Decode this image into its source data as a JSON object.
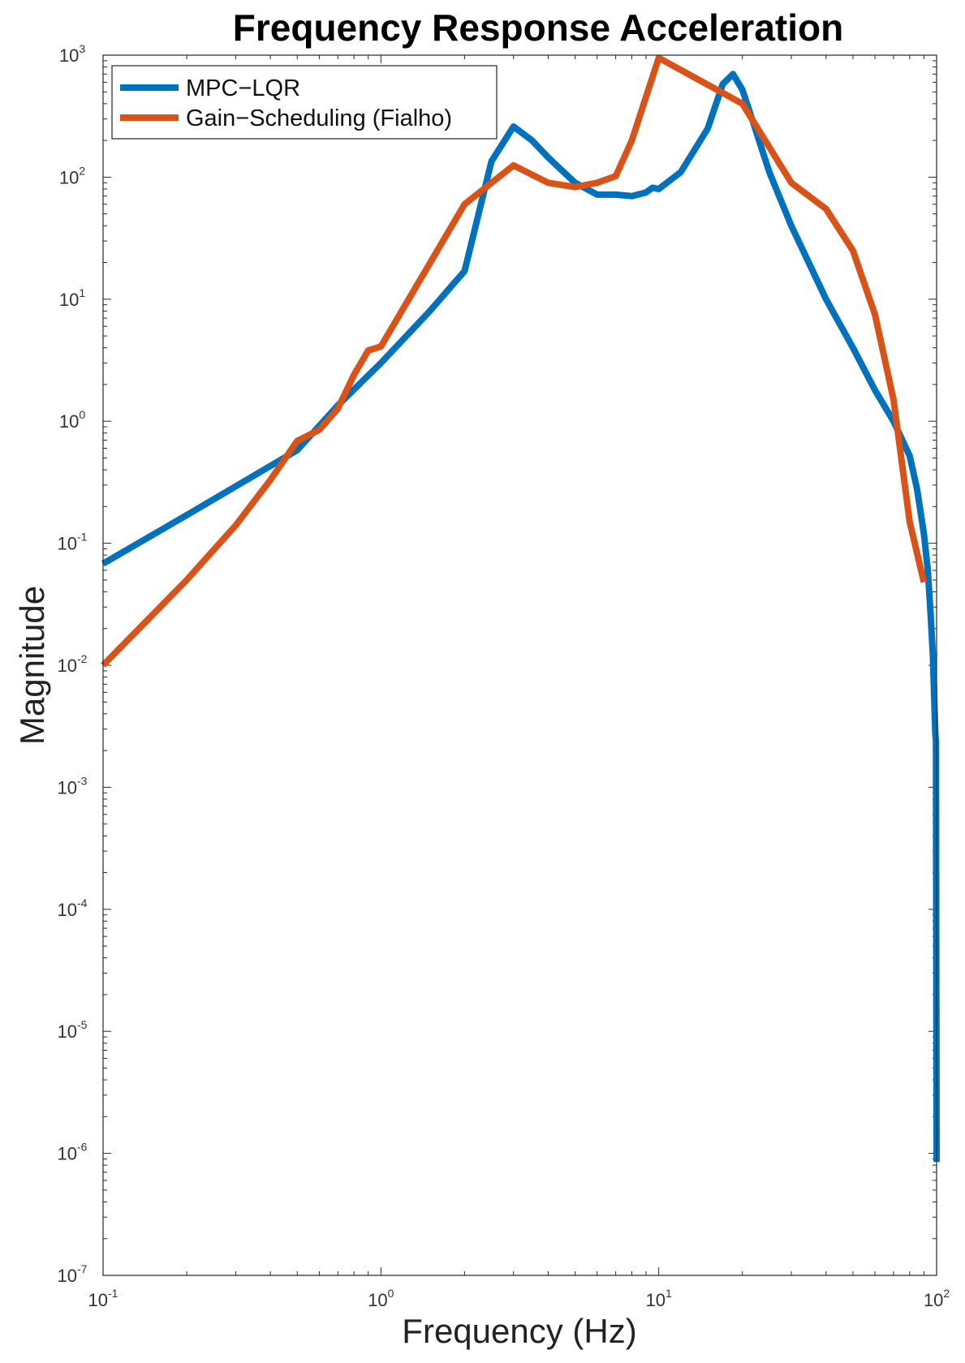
{
  "chart_data": {
    "type": "line",
    "title": "Frequency Response Acceleration",
    "xlabel": "Frequency (Hz)",
    "ylabel": "Magnitude",
    "xscale": "log",
    "yscale": "log",
    "xlim": [
      0.1,
      100
    ],
    "ylim": [
      1e-07,
      1000
    ],
    "x_ticks": [
      {
        "base": "10",
        "exp": "-1",
        "value": 0.1
      },
      {
        "base": "10",
        "exp": "0",
        "value": 1
      },
      {
        "base": "10",
        "exp": "1",
        "value": 10
      },
      {
        "base": "10",
        "exp": "2",
        "value": 100
      }
    ],
    "y_ticks": [
      {
        "base": "10",
        "exp": "-7",
        "value": 1e-07
      },
      {
        "base": "10",
        "exp": "-6",
        "value": 1e-06
      },
      {
        "base": "10",
        "exp": "-5",
        "value": 1e-05
      },
      {
        "base": "10",
        "exp": "-4",
        "value": 0.0001
      },
      {
        "base": "10",
        "exp": "-3",
        "value": 0.001
      },
      {
        "base": "10",
        "exp": "-2",
        "value": 0.01
      },
      {
        "base": "10",
        "exp": "-1",
        "value": 0.1
      },
      {
        "base": "10",
        "exp": "0",
        "value": 1
      },
      {
        "base": "10",
        "exp": "1",
        "value": 10
      },
      {
        "base": "10",
        "exp": "2",
        "value": 100
      },
      {
        "base": "10",
        "exp": "3",
        "value": 1000
      }
    ],
    "grid": false,
    "legend_position": "top-left",
    "series": [
      {
        "name": "MPC−LQR",
        "color": "#0072BD",
        "x": [
          0.1,
          0.2,
          0.5,
          0.7,
          1.0,
          1.5,
          2.0,
          2.5,
          3.0,
          3.5,
          4.0,
          5.0,
          6.0,
          7.0,
          8.0,
          9.0,
          9.5,
          10.0,
          12.0,
          15.0,
          17.0,
          18.5,
          20.0,
          22.0,
          25.0,
          30.0,
          40.0,
          50.0,
          60.0,
          70.0,
          80.0,
          85.0,
          90.0,
          93.0,
          95.0,
          97.0,
          98.0,
          99.0,
          99.5,
          100.0
        ],
        "y": [
          0.068,
          0.17,
          0.58,
          1.35,
          3.0,
          8.0,
          17.0,
          135,
          260,
          200,
          145,
          90,
          72,
          72,
          70,
          75,
          82,
          80,
          110,
          250,
          580,
          700,
          520,
          270,
          110,
          40,
          10,
          4.0,
          1.8,
          1.0,
          0.52,
          0.28,
          0.12,
          0.06,
          0.028,
          0.012,
          0.0055,
          0.0027,
          0.0024,
          8.5e-07
        ]
      },
      {
        "name": "Gain−Scheduling (Fialho)",
        "color": "#D95319",
        "x": [
          0.1,
          0.2,
          0.3,
          0.4,
          0.5,
          0.6,
          0.7,
          0.8,
          0.9,
          1.0,
          2.0,
          3.0,
          4.0,
          5.0,
          6.0,
          7.0,
          8.0,
          10.0,
          20.0,
          30.0,
          40.0,
          50.0,
          60.0,
          70.0,
          80.0,
          90.0
        ],
        "y": [
          0.01,
          0.05,
          0.14,
          0.33,
          0.69,
          0.85,
          1.27,
          2.4,
          3.8,
          4.1,
          60,
          125,
          90,
          83,
          90,
          102,
          200,
          950,
          400,
          90,
          55,
          25,
          7.5,
          1.5,
          0.15,
          0.048
        ]
      }
    ]
  }
}
